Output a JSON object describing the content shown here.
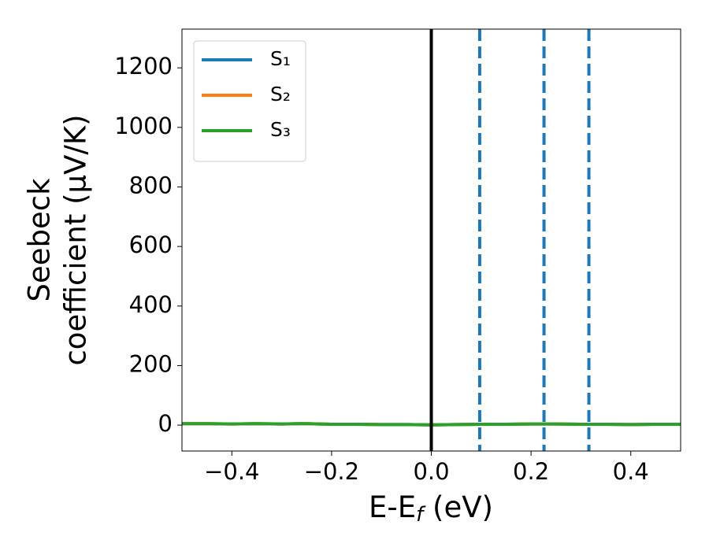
{
  "chart_data": {
    "type": "line",
    "x_label_parts": [
      "E-E",
      "f",
      " (eV)"
    ],
    "y_label_lines": [
      "Seebeck",
      "coefficient  (μV/K)"
    ],
    "x": [
      -0.5,
      -0.45,
      -0.4,
      -0.35,
      -0.3,
      -0.25,
      -0.2,
      -0.15,
      -0.1,
      -0.05,
      0.0,
      0.05,
      0.1,
      0.15,
      0.2,
      0.25,
      0.3,
      0.35,
      0.4,
      0.45,
      0.5
    ],
    "series": [
      {
        "name": "S₁",
        "color": "#1f77b4",
        "values": [
          5,
          5,
          4,
          5,
          4,
          5,
          3,
          3,
          2,
          2,
          1,
          2,
          3,
          3,
          4,
          4,
          3,
          3,
          2,
          3,
          3
        ]
      },
      {
        "name": "S₂",
        "color": "#ff7f0e",
        "values": [
          5,
          5,
          4,
          5,
          4,
          5,
          3,
          3,
          2,
          2,
          1,
          2,
          3,
          3,
          4,
          4,
          3,
          3,
          2,
          3,
          3
        ]
      },
      {
        "name": "S₃",
        "color": "#2ca02c",
        "values": [
          5,
          5,
          4,
          5,
          4,
          5,
          3,
          3,
          2,
          2,
          1,
          2,
          3,
          3,
          4,
          4,
          3,
          3,
          2,
          3,
          3
        ]
      }
    ],
    "vlines": [
      {
        "x": 0,
        "color": "#000000",
        "style": "solid"
      },
      {
        "x": 0.097,
        "color": "#1f77b4",
        "style": "dashed"
      },
      {
        "x": 0.226,
        "color": "#1f77b4",
        "style": "dashed"
      },
      {
        "x": 0.316,
        "color": "#1f77b4",
        "style": "dashed"
      }
    ],
    "xlim": [
      -0.5,
      0.5
    ],
    "ylim": [
      -87,
      1330
    ],
    "xticks": [
      {
        "value": -0.4,
        "label": "−0.4"
      },
      {
        "value": -0.2,
        "label": "−0.2"
      },
      {
        "value": 0.0,
        "label": "0.0"
      },
      0.2,
      0.4
    ],
    "yticks": [
      0,
      200,
      400,
      600,
      800,
      1000,
      1200
    ],
    "legend": "upper left"
  }
}
